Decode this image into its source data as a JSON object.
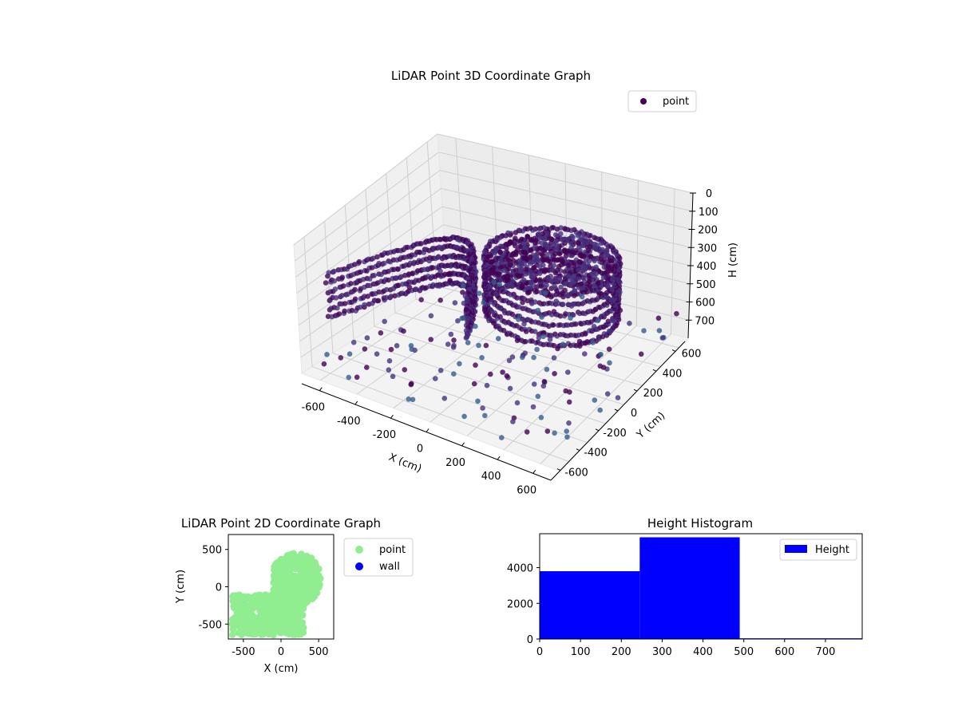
{
  "chart_data": [
    {
      "type": "scatter3d",
      "title": "LiDAR Point 3D Coordinate Graph",
      "xlabel": "X (cm)",
      "ylabel": "Y (cm)",
      "zlabel": "H (cm)",
      "xlim": [
        -700,
        700
      ],
      "ylim": [
        -700,
        700
      ],
      "zlim": [
        0,
        800
      ],
      "z_inverted": true,
      "xticks": [
        -600,
        -400,
        -200,
        0,
        200,
        400,
        600
      ],
      "yticks": [
        -600,
        -400,
        -200,
        0,
        200,
        400,
        600
      ],
      "zticks": [
        0,
        100,
        200,
        300,
        400,
        500,
        600,
        700
      ],
      "grid": true,
      "legend": [
        "point"
      ],
      "legend_position": "top-right",
      "series": [
        {
          "name": "point",
          "color_map": "viridis",
          "colors": [
            "#440154",
            "#46327e",
            "#365c8d"
          ]
        }
      ]
    },
    {
      "type": "scatter",
      "title": "LiDAR Point 2D Coordinate Graph",
      "xlabel": "X (cm)",
      "ylabel": "Y (cm)",
      "xlim": [
        -700,
        700
      ],
      "ylim": [
        -700,
        700
      ],
      "xticks": [
        -500,
        0,
        500
      ],
      "yticks": [
        -500,
        0,
        500
      ],
      "legend": [
        "point",
        "wall"
      ],
      "legend_position": "outside-right",
      "series": [
        {
          "name": "point",
          "color": "#90ee90"
        },
        {
          "name": "wall",
          "color": "#0000ff"
        }
      ]
    },
    {
      "type": "bar",
      "title": "Height Histogram",
      "xlim": [
        0,
        790
      ],
      "ylim": [
        0,
        5900
      ],
      "xticks": [
        0,
        100,
        200,
        300,
        400,
        500,
        600,
        700
      ],
      "yticks": [
        0,
        2000,
        4000
      ],
      "bins": [
        [
          0,
          245
        ],
        [
          245,
          490
        ],
        [
          490,
          790
        ]
      ],
      "values": [
        3800,
        5700,
        40
      ],
      "legend": [
        "Height"
      ],
      "legend_position": "top-right",
      "series": [
        {
          "name": "Height",
          "color": "#0000ff"
        }
      ]
    }
  ]
}
